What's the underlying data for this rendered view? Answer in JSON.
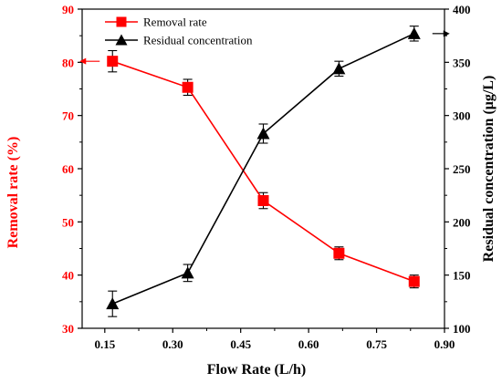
{
  "chart_data": {
    "type": "line",
    "title": "",
    "xlabel": "Flow Rate (L/h)",
    "ylabel_left": "Removal rate (%)",
    "ylabel_right": "Residual concentration (μg/L)",
    "xlim": [
      0.1,
      0.9
    ],
    "ylim_left": [
      30,
      90
    ],
    "ylim_right": [
      100,
      400
    ],
    "x_ticks": [
      0.15,
      0.3,
      0.45,
      0.6,
      0.75,
      0.9
    ],
    "x_tick_labels": [
      "0.15",
      "0.30",
      "0.45",
      "0.60",
      "0.75",
      "0.90"
    ],
    "y_left_ticks": [
      30,
      40,
      50,
      60,
      70,
      80,
      90
    ],
    "y_left_tick_labels": [
      "30",
      "40",
      "50",
      "60",
      "70",
      "80",
      "90"
    ],
    "y_right_ticks": [
      100,
      150,
      200,
      250,
      300,
      350,
      400
    ],
    "y_right_tick_labels": [
      "100",
      "150",
      "200",
      "250",
      "300",
      "350",
      "400"
    ],
    "grid": false,
    "legend_position": "top-left",
    "series": [
      {
        "name": "Removal rate",
        "axis": "left",
        "marker": "square",
        "color": "#ff0000",
        "x": [
          0.167,
          0.333,
          0.5,
          0.667,
          0.833
        ],
        "y": [
          80.2,
          75.3,
          54.0,
          44.1,
          38.8
        ],
        "err": [
          2.0,
          1.5,
          1.5,
          1.2,
          1.2
        ]
      },
      {
        "name": "Residual concentration",
        "axis": "right",
        "marker": "triangle",
        "color": "#000000",
        "x": [
          0.167,
          0.333,
          0.5,
          0.667,
          0.833
        ],
        "y": [
          123,
          152,
          283,
          344,
          377
        ],
        "err": [
          12,
          8,
          9,
          7,
          7
        ]
      }
    ]
  }
}
